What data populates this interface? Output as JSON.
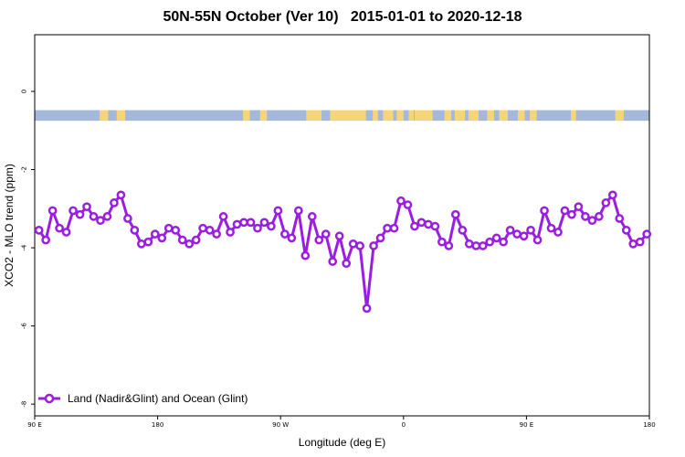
{
  "chart_data": {
    "type": "line",
    "title": "50N-55N October (Ver 10)   2015-01-01 to 2020-12-18",
    "xlabel": "Longitude (deg E)",
    "ylabel": "XCO2 - MLO trend (ppm)",
    "xlim": [
      90,
      450
    ],
    "ylim": [
      -8.3,
      1.45
    ],
    "x_ticks": [
      {
        "value": 90,
        "label": "90 E"
      },
      {
        "value": 162,
        "label": "180"
      },
      {
        "value": 234,
        "label": "90 W"
      },
      {
        "value": 306,
        "label": "0"
      },
      {
        "value": 378,
        "label": "90 E"
      },
      {
        "value": 450,
        "label": "180"
      }
    ],
    "y_ticks": [
      {
        "value": 0,
        "label": "0"
      },
      {
        "value": -2,
        "label": "-2"
      },
      {
        "value": -4,
        "label": "-4"
      },
      {
        "value": -6,
        "label": "-6"
      },
      {
        "value": -8,
        "label": "-8"
      }
    ],
    "legend": {
      "position": "bottom-left"
    },
    "land_ocean_strip": {
      "y_range": [
        -0.75,
        -0.48
      ],
      "land_color": "#f6d57a",
      "ocean_color": "#a4b8dc",
      "ocean_segments": [
        [
          90,
          128
        ],
        [
          133,
          138
        ],
        [
          143,
          212
        ],
        [
          216,
          222
        ],
        [
          226,
          249
        ],
        [
          258,
          263
        ],
        [
          284,
          288
        ],
        [
          291,
          294
        ],
        [
          300,
          302
        ],
        [
          306,
          309
        ],
        [
          312,
          312
        ],
        [
          323,
          330
        ],
        [
          334,
          336
        ],
        [
          342,
          344
        ],
        [
          350,
          355
        ],
        [
          359,
          362
        ],
        [
          367,
          373
        ],
        [
          377,
          380
        ],
        [
          384,
          404
        ],
        [
          407,
          430
        ],
        [
          435,
          450
        ]
      ]
    },
    "series": [
      {
        "name": "Land (Nadir&Glint) and Ocean (Glint)",
        "color": "#9a1ee0",
        "x": [
          92.5,
          96.5,
          100.5,
          104.5,
          108.5,
          112.5,
          116.5,
          120.5,
          124.5,
          128.5,
          132.5,
          136.5,
          140.5,
          144.5,
          148.5,
          152.5,
          156.5,
          160.5,
          164.5,
          168.5,
          172.5,
          176.5,
          180.5,
          184.5,
          188.5,
          192.5,
          196.5,
          200.5,
          204.5,
          208.5,
          212.5,
          216.5,
          220.5,
          224.5,
          228.5,
          232.5,
          236.5,
          240.5,
          244.5,
          248.5,
          252.5,
          256.5,
          260.5,
          264.5,
          268.5,
          272.5,
          276.5,
          280.5,
          284.5,
          288.5,
          292.5,
          296.5,
          300.5,
          304.5,
          308.5,
          312.5,
          316.5,
          320.5,
          324.5,
          328.5,
          332.5,
          336.5,
          340.5,
          344.5,
          348.5,
          352.5,
          356.5,
          360.5,
          364.5,
          368.5,
          372.5,
          376.5,
          380.5,
          384.5,
          388.5,
          392.5,
          396.5,
          400.5,
          404.5,
          408.5,
          412.5,
          416.5,
          420.5,
          424.5,
          428.5,
          432.5,
          436.5,
          440.5,
          444.5,
          448.5
        ],
        "y": [
          -3.55,
          -3.8,
          -3.05,
          -3.5,
          -3.6,
          -3.05,
          -3.15,
          -2.95,
          -3.2,
          -3.3,
          -3.2,
          -2.85,
          -2.65,
          -3.25,
          -3.55,
          -3.9,
          -3.85,
          -3.65,
          -3.75,
          -3.5,
          -3.55,
          -3.8,
          -3.9,
          -3.8,
          -3.5,
          -3.55,
          -3.65,
          -3.2,
          -3.6,
          -3.4,
          -3.35,
          -3.35,
          -3.5,
          -3.35,
          -3.45,
          -3.05,
          -3.65,
          -3.75,
          -3.05,
          -4.2,
          -3.2,
          -3.8,
          -3.65,
          -4.35,
          -3.7,
          -4.4,
          -3.9,
          -3.95,
          -5.55,
          -3.95,
          -3.75,
          -3.5,
          -3.5,
          -2.8,
          -2.9,
          -3.45,
          -3.35,
          -3.4,
          -3.45,
          -3.85,
          -3.95,
          -3.15,
          -3.55,
          -3.9,
          -3.95,
          -3.95,
          -3.85,
          -3.75,
          -3.85,
          -3.55,
          -3.65,
          -3.7,
          -3.55,
          -3.8,
          -3.05,
          -3.5,
          -3.6,
          -3.05,
          -3.15,
          -2.95,
          -3.2,
          -3.3,
          -3.2,
          -2.85,
          -2.65,
          -3.25,
          -3.55,
          -3.9,
          -3.85,
          -3.65
        ]
      }
    ]
  }
}
